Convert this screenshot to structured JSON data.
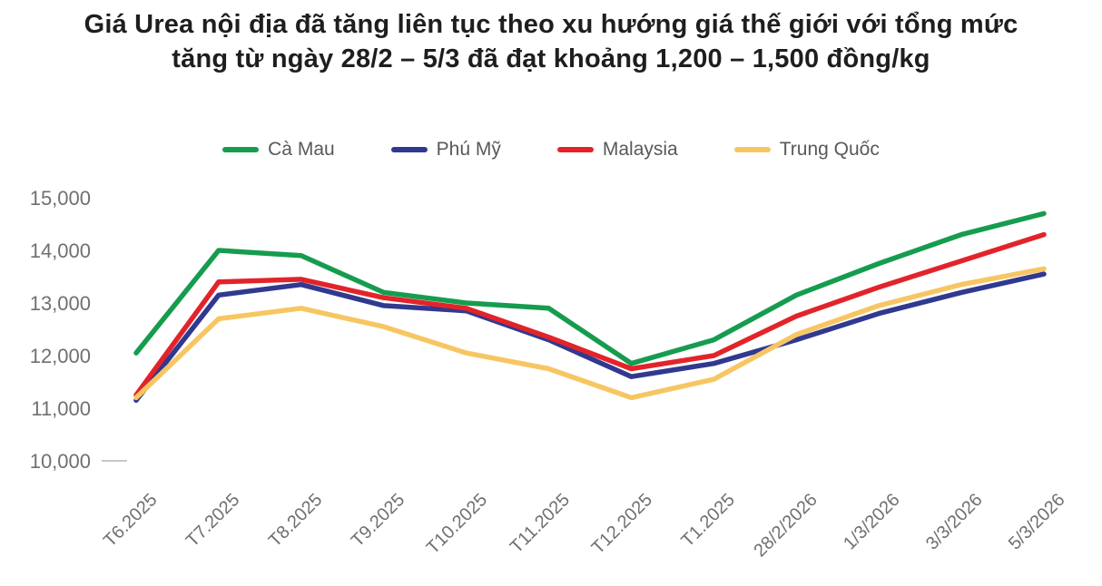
{
  "title": "Giá Urea nội địa đã tăng liên tục theo xu hướng giá thế giới với tổng mức tăng từ ngày 28/2 – 5/3 đã đạt khoảng 1,200 – 1,500 đồng/kg",
  "colors": {
    "title_text": "#1e1e1e",
    "axis_text": "#6f7072",
    "legend_text": "#58595b",
    "background": "#ffffff",
    "baseline_tick": "#c8c8c8"
  },
  "chart_data": {
    "type": "line",
    "categories": [
      "T6.2025",
      "T7.2025",
      "T8.2025",
      "T9.2025",
      "T10.2025",
      "T11.2025",
      "T12.2025",
      "T1.2025",
      "28/2/2026",
      "1/3/2026",
      "3/3/2026",
      "5/3/2026"
    ],
    "series": [
      {
        "name": "Cà Mau",
        "slug": "ca-mau",
        "color": "#169c4f",
        "values": [
          12050,
          14000,
          13900,
          13200,
          13000,
          12900,
          11850,
          12300,
          13150,
          13750,
          14300,
          14700
        ]
      },
      {
        "name": "Phú Mỹ",
        "slug": "phu-my",
        "color": "#30398f",
        "values": [
          11150,
          13150,
          13350,
          12950,
          12850,
          12300,
          11600,
          11850,
          12300,
          12800,
          13200,
          13550
        ]
      },
      {
        "name": "Malaysia",
        "slug": "malaysia",
        "color": "#e2242a",
        "values": [
          11250,
          13400,
          13450,
          13100,
          12900,
          12350,
          11750,
          12000,
          12750,
          13300,
          13800,
          14300
        ]
      },
      {
        "name": "Trung Quốc",
        "slug": "trung-quoc",
        "color": "#f7c663",
        "values": [
          11200,
          12700,
          12900,
          12550,
          12050,
          11750,
          11200,
          11550,
          12400,
          12950,
          13350,
          13650
        ]
      }
    ],
    "yticks": [
      "15,000",
      "14,000",
      "13,000",
      "12,000",
      "11,000",
      "10,000"
    ],
    "ylim": [
      10000,
      15000
    ],
    "ytick_step": 1000,
    "grid": false,
    "legend_position": "top",
    "xlabel": "",
    "ylabel": "",
    "unit": "đồng/kg"
  }
}
